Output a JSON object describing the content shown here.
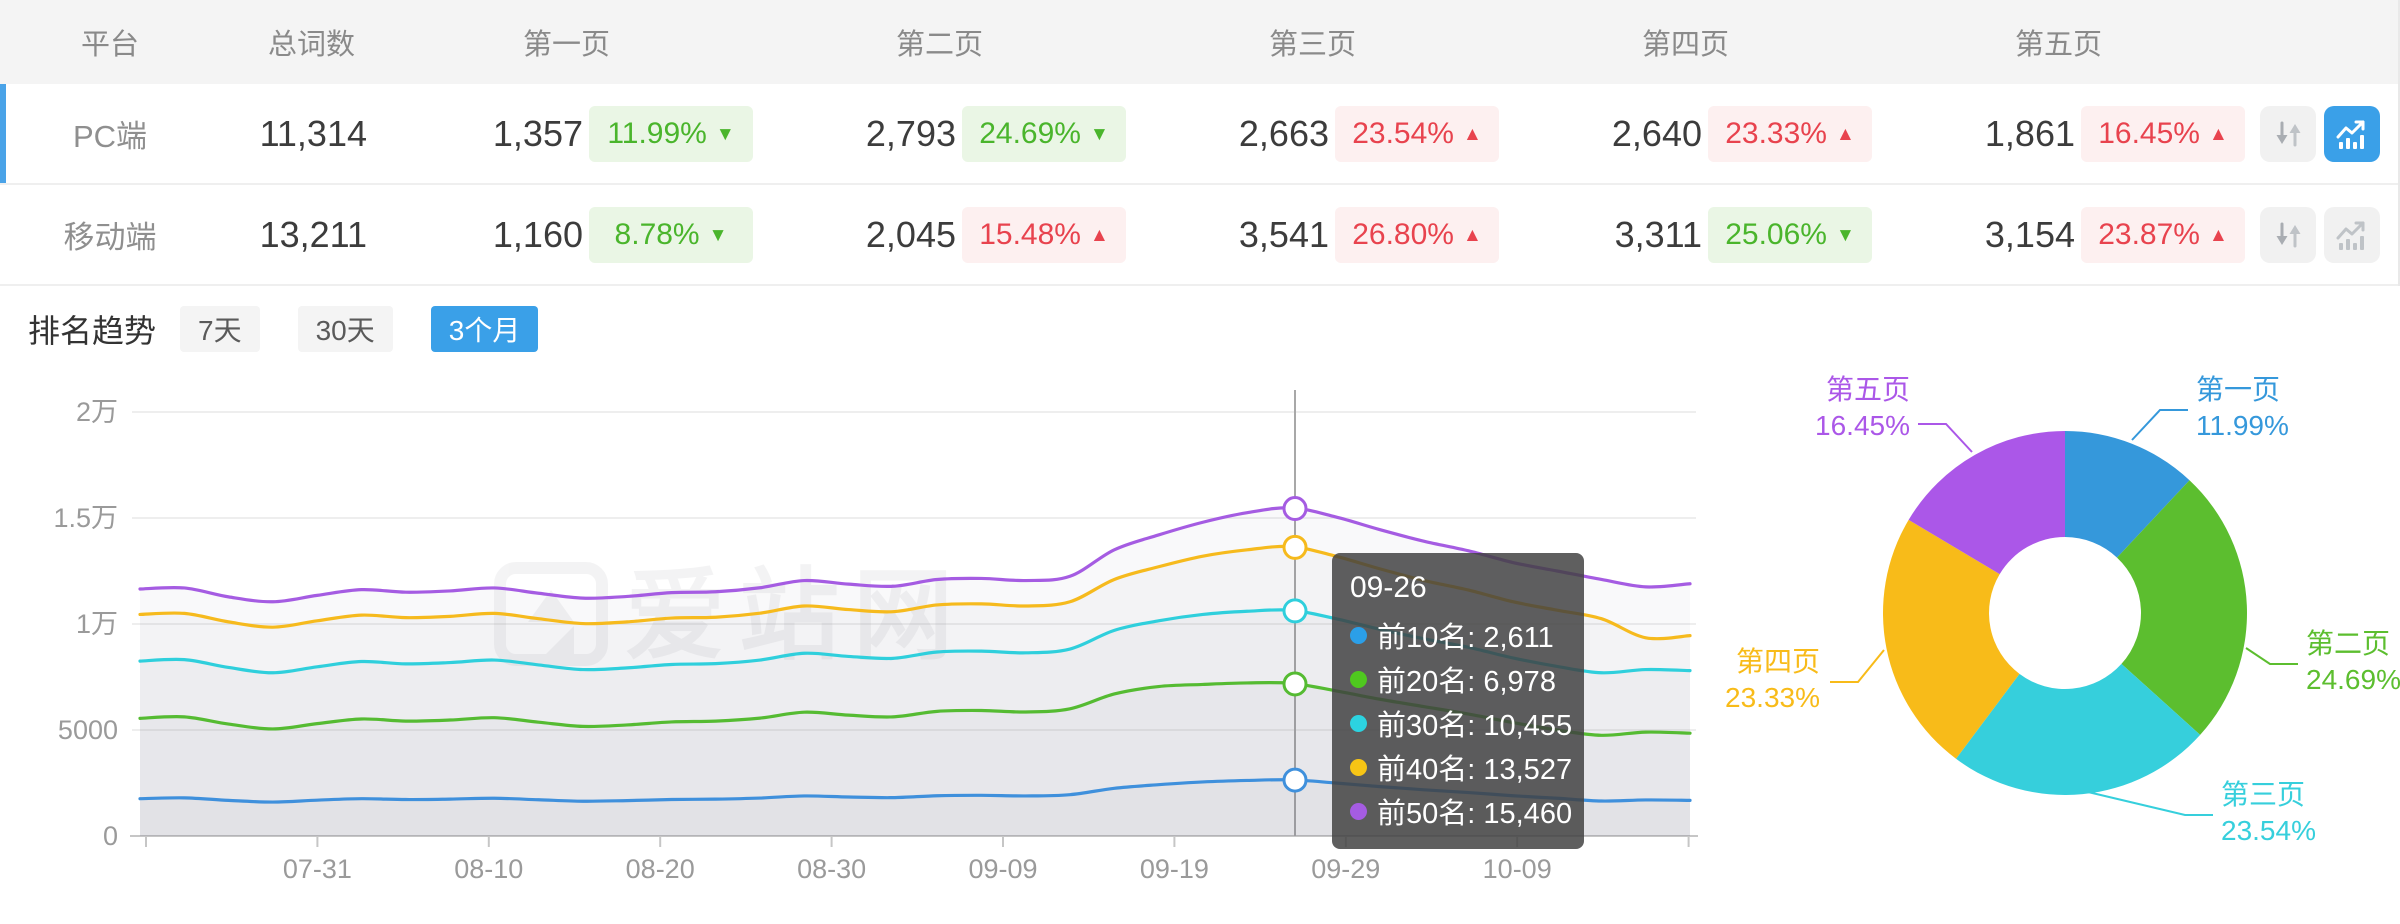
{
  "watermark": "爱站网",
  "table": {
    "columns": [
      "平台",
      "总词数",
      "第一页",
      "第二页",
      "第三页",
      "第四页",
      "第五页"
    ],
    "rows": [
      {
        "platform": "PC端",
        "total": "11,314",
        "selected": true,
        "chart_btn": "active",
        "pages": [
          {
            "count": "1,357",
            "pct": "11.99%",
            "arrow": "▼",
            "tone": "green"
          },
          {
            "count": "2,793",
            "pct": "24.69%",
            "arrow": "▼",
            "tone": "green"
          },
          {
            "count": "2,663",
            "pct": "23.54%",
            "arrow": "▲",
            "tone": "red"
          },
          {
            "count": "2,640",
            "pct": "23.33%",
            "arrow": "▲",
            "tone": "red"
          },
          {
            "count": "1,861",
            "pct": "16.45%",
            "arrow": "▲",
            "tone": "red"
          }
        ]
      },
      {
        "platform": "移动端",
        "total": "13,211",
        "selected": false,
        "chart_btn": "",
        "pages": [
          {
            "count": "1,160",
            "pct": "8.78%",
            "arrow": "▼",
            "tone": "green"
          },
          {
            "count": "2,045",
            "pct": "15.48%",
            "arrow": "▲",
            "tone": "red"
          },
          {
            "count": "3,541",
            "pct": "26.80%",
            "arrow": "▲",
            "tone": "red"
          },
          {
            "count": "3,311",
            "pct": "25.06%",
            "arrow": "▼",
            "tone": "green"
          },
          {
            "count": "3,154",
            "pct": "23.87%",
            "arrow": "▲",
            "tone": "red"
          }
        ]
      }
    ]
  },
  "trend": {
    "title": "排名趋势",
    "tabs": [
      {
        "label": "7天",
        "state": ""
      },
      {
        "label": "30天",
        "state": ""
      },
      {
        "label": "3个月",
        "state": "active"
      }
    ]
  },
  "tooltip": {
    "title": "09-26",
    "items": [
      {
        "color": "#2b9fe8",
        "text": "前10名: 2,611"
      },
      {
        "color": "#4fc81f",
        "text": "前20名: 6,978"
      },
      {
        "color": "#2cd3e0",
        "text": "前30名: 10,455"
      },
      {
        "color": "#f7c515",
        "text": "前40名: 13,527"
      },
      {
        "color": "#a55ce2",
        "text": "前50名: 15,460"
      }
    ]
  },
  "chart_data": [
    {
      "type": "line",
      "title": "排名趋势 (3个月)",
      "x_range": [
        "07-20",
        "10-19"
      ],
      "x_ticks": [
        "07-31",
        "08-10",
        "08-20",
        "08-30",
        "09-09",
        "09-19",
        "09-29",
        "10-09"
      ],
      "y_ticks": [
        "2万",
        "1.5万",
        "1万",
        "5000",
        "0"
      ],
      "ylim": [
        0,
        20000
      ],
      "grid": true,
      "legend_position": "none (series shown in hover tooltip)",
      "hover_date": "09-26",
      "hover_values": {
        "前10名": 2611,
        "前20名": 6978,
        "前30名": 10455,
        "前40名": 13527,
        "前50名": 15460
      },
      "series": [
        {
          "name": "前10名",
          "color": "#3f90dc",
          "values": [
            1760,
            1800,
            1680,
            1600,
            1690,
            1760,
            1720,
            1740,
            1780,
            1710,
            1640,
            1670,
            1720,
            1740,
            1790,
            1890,
            1840,
            1810,
            1900,
            1920,
            1890,
            1950,
            2250,
            2420,
            2550,
            2620,
            2650,
            2500,
            2330,
            2180,
            2050,
            1900,
            1780,
            1650,
            1700,
            1680
          ]
        },
        {
          "name": "前20名",
          "color": "#55bb32",
          "values": [
            5550,
            5620,
            5280,
            5050,
            5300,
            5520,
            5420,
            5470,
            5580,
            5370,
            5170,
            5240,
            5380,
            5420,
            5560,
            5840,
            5700,
            5620,
            5880,
            5920,
            5850,
            6000,
            6700,
            7050,
            7150,
            7220,
            7200,
            6850,
            6450,
            6100,
            5750,
            5350,
            5000,
            4750,
            4900,
            4850
          ]
        },
        {
          "name": "前30名",
          "color": "#2fcfdc",
          "values": [
            8250,
            8320,
            7950,
            7700,
            7980,
            8230,
            8120,
            8180,
            8300,
            8070,
            7850,
            7930,
            8090,
            8130,
            8300,
            8620,
            8470,
            8380,
            8680,
            8720,
            8640,
            8820,
            9700,
            10150,
            10450,
            10600,
            10650,
            10250,
            9750,
            9300,
            8900,
            8400,
            8000,
            7700,
            7850,
            7800
          ]
        },
        {
          "name": "前40名",
          "color": "#f6ba1d",
          "values": [
            10450,
            10500,
            10100,
            9850,
            10150,
            10420,
            10300,
            10360,
            10500,
            10250,
            10020,
            10100,
            10280,
            10320,
            10510,
            10850,
            10680,
            10580,
            10900,
            10950,
            10850,
            11050,
            12100,
            12700,
            13200,
            13500,
            13650,
            13200,
            12600,
            12050,
            11600,
            11050,
            10650,
            10250,
            9350,
            9450
          ]
        },
        {
          "name": "前50名",
          "color": "#a55ce2",
          "values": [
            11650,
            11700,
            11280,
            11050,
            11350,
            11620,
            11500,
            11560,
            11700,
            11450,
            11220,
            11300,
            11480,
            11520,
            11710,
            12050,
            11880,
            11780,
            12100,
            12150,
            12050,
            12250,
            13500,
            14200,
            14800,
            15250,
            15480,
            15050,
            14450,
            13900,
            13450,
            12900,
            12500,
            12100,
            11750,
            11900
          ]
        }
      ]
    },
    {
      "type": "pie",
      "title": "页面排名占比",
      "donut": true,
      "slices": [
        {
          "name": "第一页",
          "value": 11.99,
          "pct_label": "11.99%",
          "color": "#3598db"
        },
        {
          "name": "第二页",
          "value": 24.69,
          "pct_label": "24.69%",
          "color": "#5cbe2f"
        },
        {
          "name": "第三页",
          "value": 23.54,
          "pct_label": "23.54%",
          "color": "#36cfdc"
        },
        {
          "name": "第四页",
          "value": 23.33,
          "pct_label": "23.33%",
          "color": "#f8bb19"
        },
        {
          "name": "第五页",
          "value": 16.45,
          "pct_label": "16.45%",
          "color": "#ab57e8"
        }
      ]
    }
  ]
}
